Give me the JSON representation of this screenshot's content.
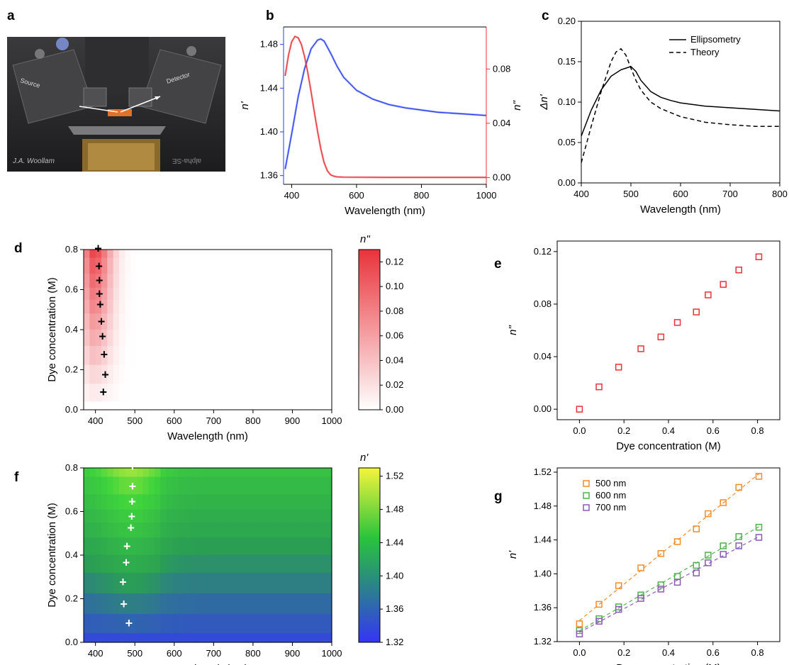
{
  "panel_letters": {
    "a": "a",
    "b": "b",
    "c": "c",
    "d": "d",
    "e": "e",
    "f": "f",
    "g": "g"
  },
  "photo": {
    "labels": {
      "source": "Source",
      "detector": "Detector",
      "brand": "J.A. Woollam",
      "model": "alpha-SE"
    }
  },
  "colors": {
    "blue": "#2b3ff0",
    "red": "#e8333a",
    "black": "#000000",
    "orange": "#f58c28",
    "green": "#4db34a",
    "purple": "#8e59b8"
  },
  "chart_data": [
    {
      "id": "b",
      "type": "line",
      "xlabel": "Wavelength (nm)",
      "ylabel_left": "n'",
      "ylabel_right": "n\"",
      "xlim": [
        375,
        1000
      ],
      "ylim_left": [
        1.352,
        1.496
      ],
      "ylim_right": [
        -0.005,
        0.111
      ],
      "xticks": [
        400,
        600,
        800,
        1000
      ],
      "yticks_left": [
        "1.36",
        "1.40",
        "1.44",
        "1.48"
      ],
      "yticks_right": [
        "0.00",
        "0.04",
        "0.08"
      ],
      "series": [
        {
          "name": "n'",
          "axis": "left",
          "color": "#2b3ff0",
          "x": [
            380,
            400,
            420,
            440,
            460,
            480,
            490,
            500,
            520,
            540,
            560,
            600,
            650,
            700,
            750,
            800,
            850,
            900,
            950,
            1000
          ],
          "y": [
            1.366,
            1.398,
            1.432,
            1.458,
            1.476,
            1.484,
            1.485,
            1.483,
            1.472,
            1.46,
            1.45,
            1.438,
            1.43,
            1.425,
            1.422,
            1.42,
            1.418,
            1.417,
            1.416,
            1.415
          ]
        },
        {
          "name": "n\"",
          "axis": "right",
          "color": "#e8333a",
          "x": [
            380,
            390,
            400,
            410,
            420,
            430,
            440,
            450,
            460,
            470,
            480,
            490,
            500,
            510,
            520,
            530,
            540,
            560,
            600,
            700,
            800,
            900,
            1000
          ],
          "y": [
            0.075,
            0.09,
            0.1,
            0.104,
            0.103,
            0.098,
            0.089,
            0.077,
            0.063,
            0.048,
            0.034,
            0.021,
            0.011,
            0.005,
            0.002,
            0.001,
            0.0005,
            0.0003,
            0.0002,
            0.0001,
            0.0001,
            0.0001,
            0.0001
          ]
        }
      ]
    },
    {
      "id": "c",
      "type": "line",
      "xlabel": "Wavelength (nm)",
      "ylabel": "Δn'",
      "xlim": [
        400,
        800
      ],
      "ylim": [
        0,
        0.2
      ],
      "xticks": [
        400,
        500,
        600,
        700,
        800
      ],
      "yticks": [
        "0.00",
        "0.05",
        "0.10",
        "0.15",
        "0.20"
      ],
      "legend_position": "top-right",
      "series": [
        {
          "name": "Ellipsometry",
          "dash": "solid",
          "x": [
            400,
            420,
            440,
            460,
            480,
            490,
            500,
            510,
            520,
            540,
            560,
            580,
            600,
            650,
            700,
            750,
            800
          ],
          "y": [
            0.058,
            0.09,
            0.115,
            0.132,
            0.14,
            0.142,
            0.144,
            0.138,
            0.127,
            0.113,
            0.106,
            0.102,
            0.099,
            0.095,
            0.093,
            0.091,
            0.089
          ]
        },
        {
          "name": "Theory",
          "dash": "dashed",
          "x": [
            400,
            420,
            440,
            460,
            470,
            480,
            490,
            500,
            510,
            520,
            540,
            560,
            600,
            650,
            700,
            750,
            800
          ],
          "y": [
            0.025,
            0.07,
            0.113,
            0.15,
            0.162,
            0.166,
            0.158,
            0.142,
            0.127,
            0.115,
            0.1,
            0.092,
            0.082,
            0.075,
            0.072,
            0.07,
            0.07
          ]
        }
      ]
    },
    {
      "id": "d",
      "type": "heatmap",
      "xlabel": "Wavelength (nm)",
      "ylabel": "Dye concentration (M)",
      "colorbar_label": "n\"",
      "xlim": [
        370,
        1000
      ],
      "ylim": [
        0,
        0.8
      ],
      "xticks": [
        400,
        500,
        600,
        700,
        800,
        900,
        1000
      ],
      "yticks": [
        "0.0",
        "0.2",
        "0.4",
        "0.6",
        "0.8"
      ],
      "colorbar_range": [
        0,
        0.13
      ],
      "colorbar_ticks": [
        "0.00",
        "0.02",
        "0.04",
        "0.06",
        "0.08",
        "0.10",
        "0.12"
      ],
      "colormap": [
        "#ffffff",
        "#e8333a"
      ],
      "rows_conc": [
        0.0,
        0.088,
        0.176,
        0.276,
        0.366,
        0.44,
        0.525,
        0.578,
        0.646,
        0.716,
        0.806
      ],
      "peak_x": [
        420,
        425,
        422,
        418,
        415,
        412,
        410,
        410,
        409,
        407
      ],
      "peak_y": [
        0.088,
        0.176,
        0.276,
        0.366,
        0.44,
        0.525,
        0.578,
        0.646,
        0.716,
        0.806
      ],
      "marker": "+"
    },
    {
      "id": "e",
      "type": "scatter",
      "xlabel": "Dye concentration (M)",
      "ylabel": "n\"",
      "xlim": [
        -0.1,
        0.9
      ],
      "ylim": [
        -0.008,
        0.128
      ],
      "xticks": [
        "0.0",
        "0.2",
        "0.4",
        "0.6",
        "0.8"
      ],
      "yticks": [
        "0.00",
        "0.04",
        "0.08",
        "0.12"
      ],
      "series": [
        {
          "name": "",
          "color": "#e8333a",
          "marker": "square",
          "x": [
            0.0,
            0.088,
            0.176,
            0.276,
            0.366,
            0.44,
            0.525,
            0.578,
            0.646,
            0.716,
            0.806
          ],
          "y": [
            0.0,
            0.017,
            0.032,
            0.046,
            0.055,
            0.066,
            0.074,
            0.087,
            0.095,
            0.106,
            0.116
          ]
        }
      ]
    },
    {
      "id": "f",
      "type": "heatmap",
      "xlabel": "Wavelength (nm)",
      "ylabel": "Dye concentration (M)",
      "colorbar_label": "n'",
      "xlim": [
        370,
        1000
      ],
      "ylim": [
        0,
        0.8
      ],
      "xticks": [
        400,
        500,
        600,
        700,
        800,
        900,
        1000
      ],
      "yticks": [
        "0.0",
        "0.2",
        "0.4",
        "0.6",
        "0.8"
      ],
      "colorbar_range": [
        1.32,
        1.53
      ],
      "colorbar_ticks": [
        "1.32",
        "1.36",
        "1.40",
        "1.44",
        "1.48",
        "1.52"
      ],
      "colormap": [
        "#3535f5",
        "#2aa052",
        "#3fd43c",
        "#f5f53c"
      ],
      "rows_conc": [
        0.0,
        0.088,
        0.176,
        0.276,
        0.366,
        0.44,
        0.525,
        0.578,
        0.646,
        0.716,
        0.806
      ],
      "peak_x": [
        485,
        472,
        470,
        478,
        480,
        490,
        492,
        493,
        494,
        494
      ],
      "peak_y": [
        0.088,
        0.176,
        0.276,
        0.366,
        0.44,
        0.525,
        0.578,
        0.646,
        0.716,
        0.806
      ],
      "marker": "+"
    },
    {
      "id": "g",
      "type": "scatter",
      "xlabel": "Dye concentration (M)",
      "ylabel": "n'",
      "xlim": [
        -0.1,
        0.9
      ],
      "ylim": [
        1.32,
        1.525
      ],
      "xticks": [
        "0.0",
        "0.2",
        "0.4",
        "0.6",
        "0.8"
      ],
      "yticks": [
        "1.32",
        "1.36",
        "1.40",
        "1.44",
        "1.48",
        "1.52"
      ],
      "legend_position": "top-left",
      "x": [
        0.0,
        0.088,
        0.176,
        0.276,
        0.366,
        0.44,
        0.525,
        0.578,
        0.646,
        0.716,
        0.806
      ],
      "series": [
        {
          "name": "500 nm",
          "color": "#f58c28",
          "marker": "square",
          "fit": "dashed",
          "y": [
            1.341,
            1.364,
            1.386,
            1.407,
            1.424,
            1.438,
            1.453,
            1.471,
            1.484,
            1.502,
            1.515
          ]
        },
        {
          "name": "600 nm",
          "color": "#4db34a",
          "marker": "square",
          "fit": "dashed",
          "y": [
            1.333,
            1.347,
            1.361,
            1.375,
            1.387,
            1.397,
            1.41,
            1.422,
            1.433,
            1.444,
            1.455
          ]
        },
        {
          "name": "700 nm",
          "color": "#8e59b8",
          "marker": "square",
          "fit": "dashed",
          "y": [
            1.329,
            1.344,
            1.358,
            1.371,
            1.382,
            1.39,
            1.401,
            1.413,
            1.423,
            1.433,
            1.443
          ]
        }
      ]
    }
  ]
}
